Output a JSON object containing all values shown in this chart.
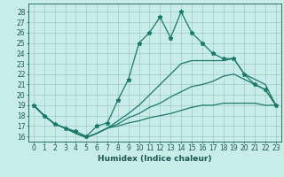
{
  "series": [
    {
      "x": [
        0,
        1,
        2,
        3,
        4,
        5,
        6,
        7,
        8,
        9,
        10,
        11,
        12,
        13,
        14,
        15,
        16,
        17,
        18,
        19,
        20,
        21,
        22,
        23
      ],
      "y": [
        19,
        18,
        17.2,
        16.8,
        16.5,
        16,
        17,
        17.3,
        19.5,
        21.5,
        25,
        26,
        27.5,
        25.5,
        28,
        26,
        25,
        24,
        23.5,
        23.5,
        22,
        21,
        20.5,
        19
      ],
      "color": "#1a7a6a",
      "marker": "*",
      "linewidth": 0.9,
      "markersize": 3.5
    },
    {
      "x": [
        0,
        1,
        2,
        3,
        4,
        5,
        6,
        7,
        8,
        9,
        10,
        11,
        12,
        13,
        14,
        15,
        16,
        17,
        18,
        19,
        20,
        21,
        22,
        23
      ],
      "y": [
        19,
        18.0,
        17.2,
        16.8,
        16.3,
        15.9,
        16.3,
        16.8,
        17.5,
        18.2,
        19.0,
        20.0,
        21.0,
        22.0,
        23.0,
        23.3,
        23.3,
        23.3,
        23.3,
        23.5,
        22.0,
        21.5,
        21.0,
        19.0
      ],
      "color": "#1a7a6a",
      "marker": null,
      "linewidth": 0.9,
      "markersize": 0
    },
    {
      "x": [
        0,
        1,
        2,
        3,
        4,
        5,
        6,
        7,
        8,
        9,
        10,
        11,
        12,
        13,
        14,
        15,
        16,
        17,
        18,
        19,
        20,
        21,
        22,
        23
      ],
      "y": [
        19,
        18.0,
        17.2,
        16.8,
        16.3,
        15.9,
        16.3,
        16.8,
        17.2,
        17.8,
        18.2,
        18.8,
        19.2,
        19.8,
        20.3,
        20.8,
        21.0,
        21.3,
        21.8,
        22.0,
        21.5,
        21.0,
        20.5,
        19.0
      ],
      "color": "#1a7a6a",
      "marker": null,
      "linewidth": 0.9,
      "markersize": 0
    },
    {
      "x": [
        0,
        1,
        2,
        3,
        4,
        5,
        6,
        7,
        8,
        9,
        10,
        11,
        12,
        13,
        14,
        15,
        16,
        17,
        18,
        19,
        20,
        21,
        22,
        23
      ],
      "y": [
        19,
        18.0,
        17.2,
        16.8,
        16.3,
        15.9,
        16.3,
        16.8,
        17.0,
        17.3,
        17.5,
        17.8,
        18.0,
        18.2,
        18.5,
        18.8,
        19.0,
        19.0,
        19.2,
        19.2,
        19.2,
        19.2,
        19.0,
        19.0
      ],
      "color": "#1a7a6a",
      "marker": null,
      "linewidth": 0.9,
      "markersize": 0
    }
  ],
  "xlim": [
    -0.5,
    23.5
  ],
  "ylim": [
    15.5,
    28.8
  ],
  "yticks": [
    16,
    17,
    18,
    19,
    20,
    21,
    22,
    23,
    24,
    25,
    26,
    27,
    28
  ],
  "xticks": [
    0,
    1,
    2,
    3,
    4,
    5,
    6,
    7,
    8,
    9,
    10,
    11,
    12,
    13,
    14,
    15,
    16,
    17,
    18,
    19,
    20,
    21,
    22,
    23
  ],
  "xlabel": "Humidex (Indice chaleur)",
  "bg_color": "#c8ece8",
  "grid_color": "#9bbfbb",
  "line_color": "#1a6a5a",
  "text_color": "#1a5a50",
  "tick_fontsize": 5.5,
  "xlabel_fontsize": 6.5
}
